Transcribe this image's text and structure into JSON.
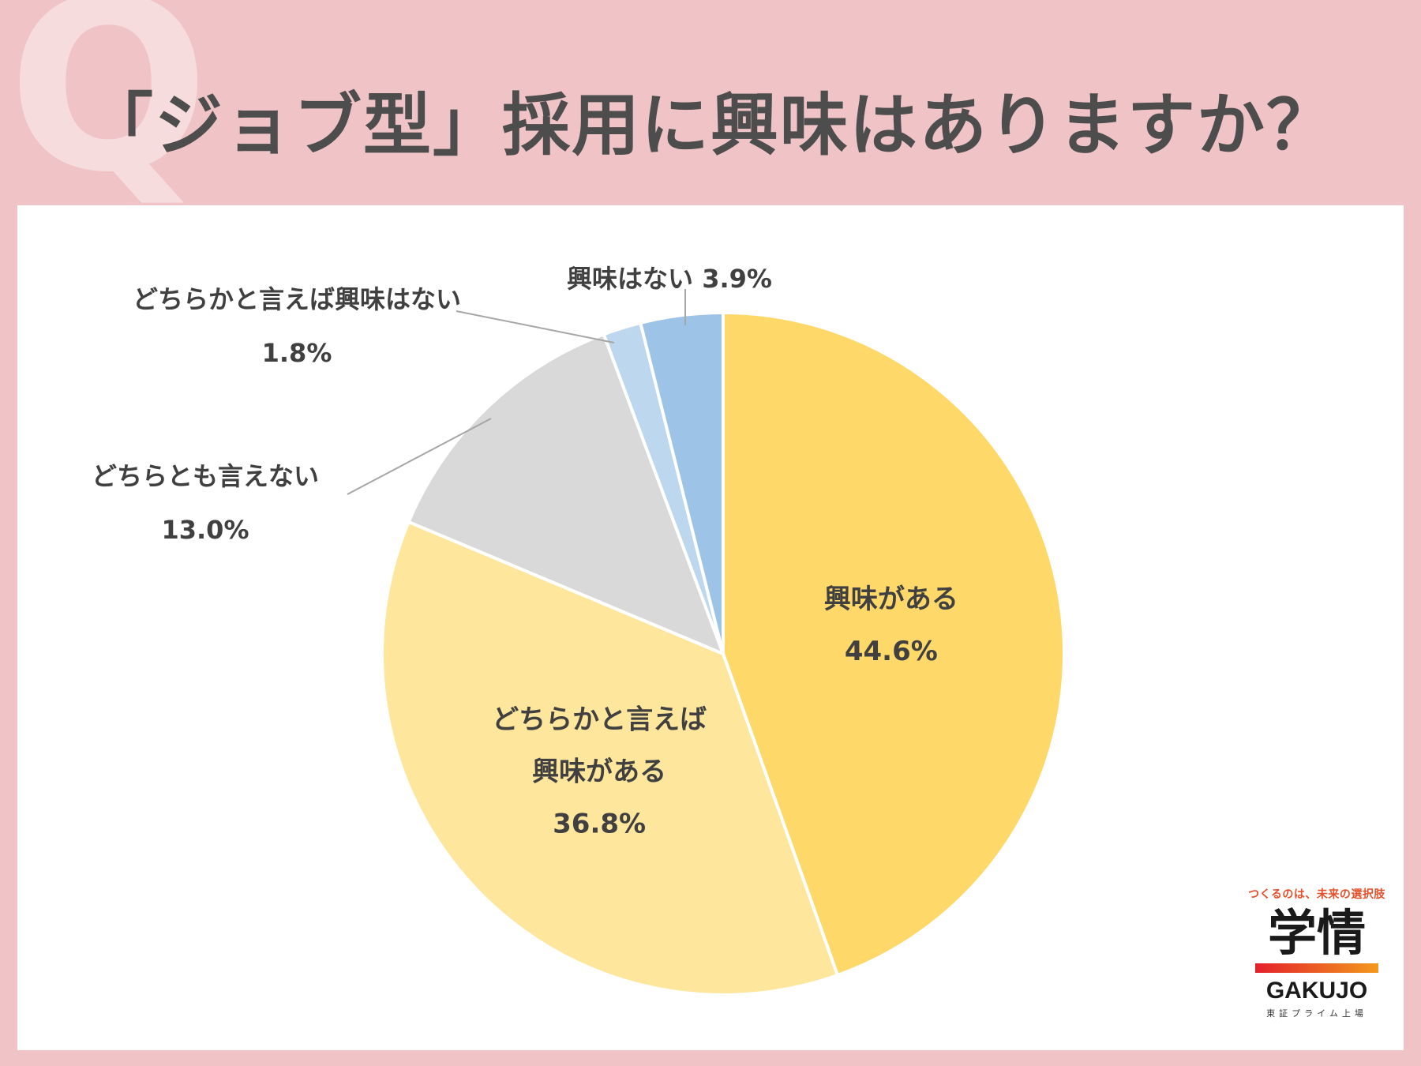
{
  "header": {
    "q_mark": "Q",
    "title": "「ジョブ型」採用に興味はありますか？"
  },
  "chart_data": {
    "type": "pie",
    "title": "「ジョブ型」採用に興味はありますか？",
    "slices": [
      {
        "label_lines": [
          "興味がある"
        ],
        "value": 44.6,
        "value_label": "44.6%",
        "color": "#fed96a",
        "label_pos": "inside"
      },
      {
        "label_lines": [
          "どちらかと言えば",
          "興味がある"
        ],
        "value": 36.8,
        "value_label": "36.8%",
        "color": "#fee69c",
        "label_pos": "inside"
      },
      {
        "label_lines": [
          "どちらとも言えない"
        ],
        "value": 13.0,
        "value_label": "13.0%",
        "color": "#d9d9d9",
        "label_pos": "outside-left"
      },
      {
        "label_lines": [
          "どちらかと言えば興味はない"
        ],
        "value": 1.8,
        "value_label": "1.8%",
        "color": "#bdd7ee",
        "label_pos": "outside-top-left"
      },
      {
        "label_lines": [
          "興味はない 3.9%"
        ],
        "value": 3.9,
        "value_label": "",
        "color": "#9dc3e6",
        "label_pos": "outside-top"
      }
    ],
    "start": "12 o'clock",
    "direction": "clockwise",
    "legend": "none"
  },
  "logo": {
    "tagline": "つくるのは、未来の選択肢",
    "name_jp": "学情",
    "name_en": "GAKUJO",
    "sub": "東証プライム上場"
  }
}
